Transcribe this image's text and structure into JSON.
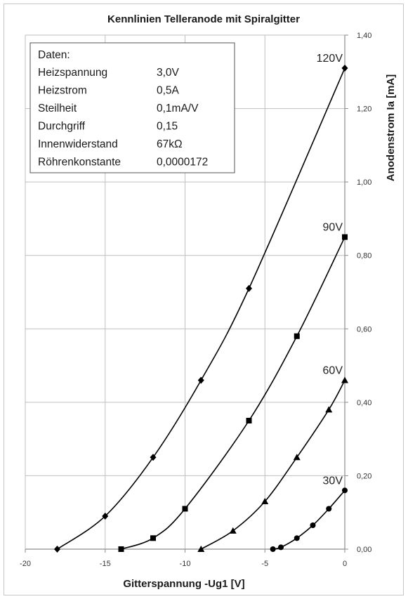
{
  "chart_data": {
    "type": "line",
    "title": "Kennlinien Telleranode mit Spiralgitter",
    "xlabel": "Gitterspannung -Ug1 [V]",
    "ylabel": "Anodenstrom Ia [mA]",
    "xlim": [
      -20,
      0
    ],
    "ylim": [
      0,
      1.4
    ],
    "x_ticks": [
      "-20",
      "-15",
      "-10",
      "-5",
      "0"
    ],
    "y_ticks": [
      "0,00",
      "0,20",
      "0,40",
      "0,60",
      "0,80",
      "1,00",
      "1,20",
      "1,40"
    ],
    "grid": "vertical and horizontal major",
    "y_axis_position": "right",
    "series": [
      {
        "name": "120V",
        "marker": "diamond",
        "x": [
          -18,
          -15,
          -12,
          -9,
          -6,
          0
        ],
        "y": [
          0.0,
          0.09,
          0.25,
          0.46,
          0.71,
          1.31
        ]
      },
      {
        "name": "90V",
        "marker": "square",
        "x": [
          -14,
          -12,
          -10,
          -6,
          -3,
          0
        ],
        "y": [
          0.0,
          0.03,
          0.11,
          0.35,
          0.58,
          0.85
        ]
      },
      {
        "name": "60V",
        "marker": "triangle",
        "x": [
          -9,
          -7,
          -5,
          -3,
          -1,
          0
        ],
        "y": [
          0.0,
          0.05,
          0.13,
          0.25,
          0.38,
          0.46
        ]
      },
      {
        "name": "30V",
        "marker": "circle",
        "x": [
          -4.5,
          -4,
          -3,
          -2,
          -1,
          0
        ],
        "y": [
          0.0,
          0.005,
          0.03,
          0.065,
          0.11,
          0.16
        ]
      }
    ],
    "info_box": {
      "heading": "Daten:",
      "rows": [
        {
          "label": "Heizspannung",
          "value": "3,0V"
        },
        {
          "label": "Heizstrom",
          "value": "0,5A"
        },
        {
          "label": "Steilheit",
          "value": "0,1mA/V"
        },
        {
          "label": "Durchgriff",
          "value": "0,15"
        },
        {
          "label": "Innenwiderstand",
          "value": "67kΩ"
        },
        {
          "label": "Röhrenkonstante",
          "value": "0,0000172"
        }
      ]
    },
    "colors": {
      "line": "#000000",
      "grid": "#bfbfbf",
      "axis": "#8c8c8c"
    }
  }
}
